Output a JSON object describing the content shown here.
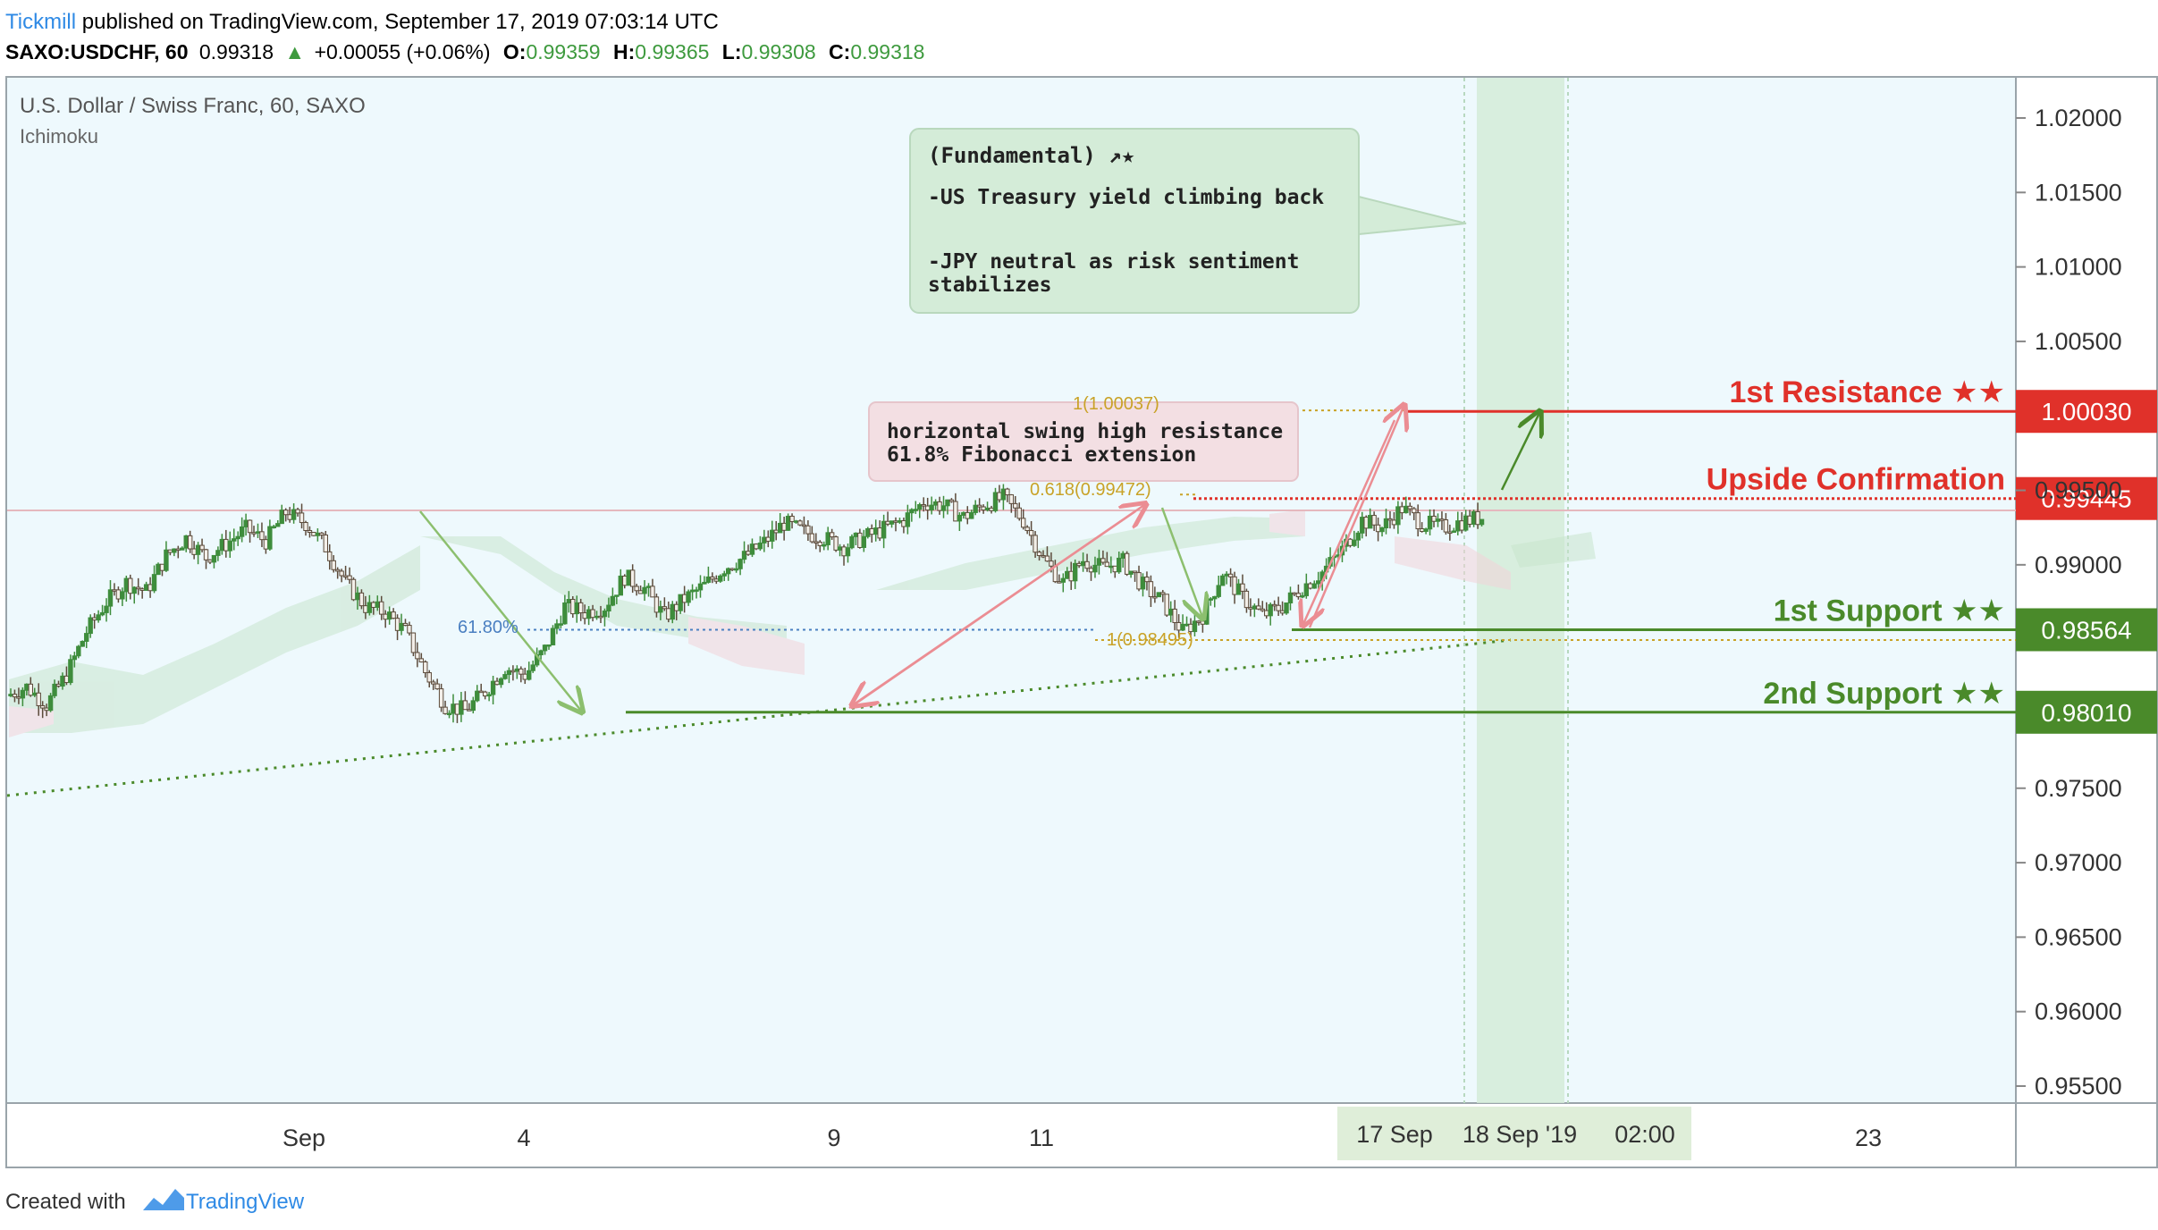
{
  "header": {
    "publisher": "Tickmill",
    "published_text": " published on TradingView.com, September 17, 2019 07:03:14 UTC",
    "symbol": "SAXO:USDCHF, 60",
    "last_price": "0.99318",
    "change": "+0.00055 (+0.06%)",
    "o_label": "O:",
    "o_value": "0.99359",
    "h_label": "H:",
    "h_value": "0.99365",
    "l_label": "L:",
    "l_value": "0.99308",
    "c_label": "C:",
    "c_value": "0.99318"
  },
  "pane": {
    "title": "U.S. Dollar / Swiss Franc, 60, SAXO",
    "indicator": "Ichimoku"
  },
  "footer": {
    "created_with": "Created with",
    "brand": "TradingView"
  },
  "annotations": {
    "fundamental_title": "(Fundamental) ↗★",
    "fundamental_line1": "-US Treasury yield climbing back",
    "fundamental_line2a": "-JPY neutral as risk sentiment",
    "fundamental_line2b": "stabilizes",
    "resistance_note_line1": "horizontal swing high resistance",
    "resistance_note_line2": "61.8% Fibonacci extension",
    "fib_top": "1(1.00037)",
    "fib_618": "0.618(0.99472)",
    "fib_bottom": "1(0.98495)",
    "retracement_618": "61.80%"
  },
  "colors": {
    "background": "#eef9fd",
    "resistance": "#e0312a",
    "support": "#4a8a2a",
    "candle_up": "#3e8d3c",
    "candle_down": "#5c4b3b",
    "fib": "#c9a227",
    "arrow_pink": "#eb8d93",
    "arrow_green": "#8cbf6e",
    "highlight": "#d4ecd8",
    "brand": "#2f8ae5"
  },
  "chart_data": {
    "type": "candlestick",
    "title": "U.S. Dollar / Swiss Franc, 60, SAXO",
    "indicator": "Ichimoku",
    "ylim": [
      0.9525,
      1.0225
    ],
    "y_ticks": [
      "1.02000",
      "1.01500",
      "1.01000",
      "1.00500",
      "0.99500",
      "0.99000",
      "0.97500",
      "0.97000",
      "0.96500",
      "0.96000",
      "0.95500"
    ],
    "x_ticks": [
      "Sep",
      "4",
      "9",
      "11",
      "17 Sep",
      "18 Sep '19",
      "02:00",
      "23"
    ],
    "levels": [
      {
        "name": "1st Resistance ★★",
        "value": 1.0003,
        "label": "1.00030",
        "kind": "resistance"
      },
      {
        "name": "Upside Confirmation",
        "value": 0.99445,
        "label": "0.99445",
        "kind": "resistance"
      },
      {
        "name": "1st Support ★★",
        "value": 0.98564,
        "label": "0.98564",
        "kind": "support"
      },
      {
        "name": "2nd Support ★★",
        "value": 0.9801,
        "label": "0.98010",
        "kind": "support"
      }
    ],
    "fibonacci": [
      {
        "label": "1(1.00037)",
        "value": 1.00037
      },
      {
        "label": "0.618(0.99472)",
        "value": 0.99472
      },
      {
        "label": "1(0.98495)",
        "value": 0.98495
      },
      {
        "label": "61.80%",
        "value": 0.98564
      }
    ],
    "price_path": [
      0.9812,
      0.9818,
      0.9806,
      0.9826,
      0.9855,
      0.9875,
      0.9888,
      0.9882,
      0.9906,
      0.9918,
      0.9905,
      0.9914,
      0.9924,
      0.9916,
      0.9935,
      0.9928,
      0.9912,
      0.9888,
      0.9872,
      0.9868,
      0.9855,
      0.9828,
      0.9806,
      0.9802,
      0.9815,
      0.9831,
      0.9826,
      0.9843,
      0.9872,
      0.9868,
      0.9872,
      0.9892,
      0.9884,
      0.9865,
      0.9877,
      0.9886,
      0.9898,
      0.9905,
      0.9915,
      0.9928,
      0.9922,
      0.9918,
      0.9912,
      0.9918,
      0.9924,
      0.993,
      0.9942,
      0.994,
      0.9932,
      0.994,
      0.9945,
      0.993,
      0.9904,
      0.9888,
      0.9903,
      0.9898,
      0.9902,
      0.9886,
      0.9875,
      0.9855,
      0.9866,
      0.9895,
      0.9878,
      0.9866,
      0.9872,
      0.9885,
      0.9895,
      0.991,
      0.993,
      0.9925,
      0.9938,
      0.9928,
      0.9925,
      0.9929,
      0.99318
    ]
  }
}
